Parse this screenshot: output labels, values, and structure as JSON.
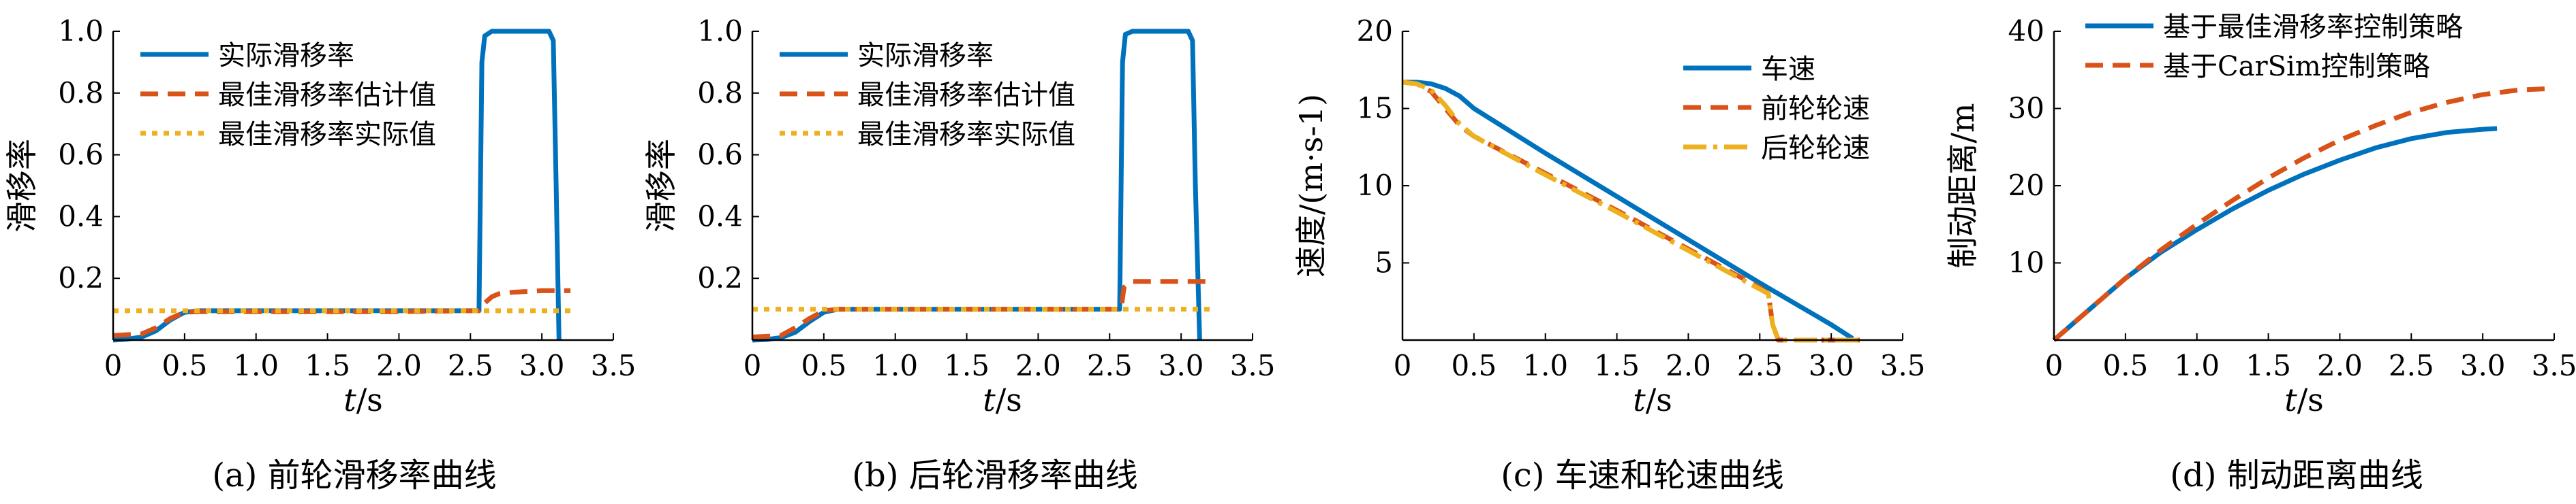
{
  "chart_data": [
    {
      "type": "line",
      "caption": "(a) 前轮滑移率曲线",
      "xlabel": "t/s",
      "ylabel": "滑移率",
      "xlim": [
        0,
        3.5
      ],
      "ylim": [
        0,
        1.0
      ],
      "xticks": [
        "0",
        "0.5",
        "1.0",
        "1.5",
        "2.0",
        "2.5",
        "3.0",
        "3.5"
      ],
      "yticks": [
        "0.2",
        "0.4",
        "0.6",
        "0.8",
        "1.0"
      ],
      "legend_position": "top-left",
      "series": [
        {
          "name": "实际滑移率",
          "color": "#0072BD",
          "style": "solid",
          "x": [
            0,
            0.1,
            0.2,
            0.3,
            0.4,
            0.5,
            0.6,
            0.8,
            1.0,
            1.5,
            2.0,
            2.5,
            2.56,
            2.58,
            2.6,
            2.65,
            3.0,
            3.05,
            3.08,
            3.1,
            3.12
          ],
          "y": [
            0,
            0.003,
            0.01,
            0.03,
            0.065,
            0.09,
            0.095,
            0.095,
            0.095,
            0.095,
            0.095,
            0.095,
            0.095,
            0.9,
            0.985,
            1.0,
            1.0,
            1.0,
            0.97,
            0.5,
            0.0
          ]
        },
        {
          "name": "最佳滑移率估计值",
          "color": "#D95319",
          "style": "dashed",
          "x": [
            0,
            0.2,
            0.3,
            0.4,
            0.5,
            0.6,
            0.8,
            1.0,
            1.5,
            2.0,
            2.5,
            2.56,
            2.6,
            2.65,
            2.7,
            2.8,
            3.0,
            3.2
          ],
          "y": [
            0.015,
            0.02,
            0.04,
            0.07,
            0.09,
            0.092,
            0.092,
            0.092,
            0.092,
            0.092,
            0.095,
            0.095,
            0.12,
            0.14,
            0.15,
            0.155,
            0.16,
            0.16
          ]
        },
        {
          "name": "最佳滑移率实际值",
          "color": "#EDB120",
          "style": "dotted",
          "x": [
            0,
            3.2
          ],
          "y": [
            0.095,
            0.095
          ]
        }
      ]
    },
    {
      "type": "line",
      "caption": "(b) 后轮滑移率曲线",
      "xlabel": "t/s",
      "ylabel": "滑移率",
      "xlim": [
        0,
        3.5
      ],
      "ylim": [
        0,
        1.0
      ],
      "xticks": [
        "0",
        "0.5",
        "1.0",
        "1.5",
        "2.0",
        "2.5",
        "3.0",
        "3.5"
      ],
      "yticks": [
        "0.2",
        "0.4",
        "0.6",
        "0.8",
        "1.0"
      ],
      "legend_position": "top-left",
      "series": [
        {
          "name": "实际滑移率",
          "color": "#0072BD",
          "style": "solid",
          "x": [
            0,
            0.1,
            0.2,
            0.3,
            0.4,
            0.5,
            0.6,
            0.8,
            1.0,
            1.5,
            2.0,
            2.5,
            2.57,
            2.59,
            2.61,
            2.66,
            3.0,
            3.05,
            3.08,
            3.1,
            3.13
          ],
          "y": [
            0,
            0.002,
            0.008,
            0.025,
            0.06,
            0.09,
            0.1,
            0.1,
            0.1,
            0.1,
            0.1,
            0.1,
            0.1,
            0.9,
            0.99,
            1.0,
            1.0,
            1.0,
            0.97,
            0.5,
            0.0
          ]
        },
        {
          "name": "最佳滑移率估计值",
          "color": "#D95319",
          "style": "dashed",
          "x": [
            0,
            0.2,
            0.3,
            0.4,
            0.5,
            0.6,
            0.8,
            1.0,
            1.5,
            2.0,
            2.5,
            2.58,
            2.6,
            2.65,
            3.0,
            3.2
          ],
          "y": [
            0.01,
            0.015,
            0.04,
            0.07,
            0.095,
            0.1,
            0.1,
            0.1,
            0.1,
            0.1,
            0.1,
            0.1,
            0.17,
            0.19,
            0.19,
            0.19
          ]
        },
        {
          "name": "最佳滑移率实际值",
          "color": "#EDB120",
          "style": "dotted",
          "x": [
            0,
            3.2
          ],
          "y": [
            0.1,
            0.1
          ]
        }
      ]
    },
    {
      "type": "line",
      "caption": "(c) 车速和轮速曲线",
      "xlabel": "t/s",
      "ylabel": "速度/(m·s-1)",
      "xlim": [
        0,
        3.5
      ],
      "ylim": [
        0,
        20
      ],
      "xticks": [
        "0",
        "0.5",
        "1.0",
        "1.5",
        "2.0",
        "2.5",
        "3.0",
        "3.5"
      ],
      "yticks": [
        "5",
        "10",
        "15",
        "20"
      ],
      "legend_position": "top-right",
      "series": [
        {
          "name": "车速",
          "color": "#0072BD",
          "style": "solid",
          "x": [
            0,
            0.1,
            0.2,
            0.3,
            0.4,
            0.5,
            1.0,
            1.5,
            2.0,
            2.5,
            3.0,
            3.15
          ],
          "y": [
            16.7,
            16.7,
            16.6,
            16.3,
            15.8,
            15.0,
            12.1,
            9.3,
            6.5,
            3.7,
            1.0,
            0.1
          ]
        },
        {
          "name": "前轮轮速",
          "color": "#D95319",
          "style": "dashed",
          "x": [
            0,
            0.1,
            0.2,
            0.3,
            0.4,
            0.5,
            1.0,
            1.5,
            2.0,
            2.5,
            2.56,
            2.59,
            2.63,
            3.2
          ],
          "y": [
            16.7,
            16.6,
            16.1,
            15.0,
            13.9,
            13.2,
            10.8,
            8.4,
            5.9,
            3.4,
            3.0,
            1.0,
            0.0,
            0.0
          ]
        },
        {
          "name": "后轮轮速",
          "color": "#EDB120",
          "style": "dashdot",
          "x": [
            0,
            0.1,
            0.2,
            0.3,
            0.4,
            0.5,
            1.0,
            1.5,
            2.0,
            2.5,
            2.56,
            2.59,
            2.63,
            3.2
          ],
          "y": [
            16.7,
            16.6,
            16.2,
            15.2,
            14.0,
            13.2,
            10.7,
            8.3,
            5.8,
            3.3,
            3.0,
            1.0,
            0.0,
            0.0
          ]
        }
      ]
    },
    {
      "type": "line",
      "caption": "(d) 制动距离曲线",
      "xlabel": "t/s",
      "ylabel": "制动距离/m",
      "xlim": [
        0,
        3.5
      ],
      "ylim": [
        0,
        40
      ],
      "xticks": [
        "0",
        "0.5",
        "1.0",
        "1.5",
        "2.0",
        "2.5",
        "3.0",
        "3.5"
      ],
      "yticks": [
        "10",
        "20",
        "30",
        "40"
      ],
      "legend_position": "top",
      "series": [
        {
          "name": "基于最佳滑移率控制策略",
          "color": "#0072BD",
          "style": "solid",
          "x": [
            0,
            0.25,
            0.5,
            0.75,
            1.0,
            1.25,
            1.5,
            1.75,
            2.0,
            2.25,
            2.5,
            2.75,
            3.0,
            3.1
          ],
          "y": [
            0,
            4.0,
            8.0,
            11.4,
            14.3,
            17.0,
            19.4,
            21.5,
            23.3,
            24.9,
            26.1,
            26.9,
            27.3,
            27.4
          ]
        },
        {
          "name": "基于CarSim控制策略",
          "color": "#D95319",
          "style": "dashed",
          "x": [
            0,
            0.25,
            0.5,
            0.75,
            1.0,
            1.25,
            1.5,
            1.75,
            2.0,
            2.25,
            2.5,
            2.75,
            3.0,
            3.25,
            3.5
          ],
          "y": [
            0,
            4.0,
            8.0,
            11.7,
            15.0,
            18.1,
            21.0,
            23.6,
            25.9,
            27.8,
            29.5,
            30.8,
            31.8,
            32.4,
            32.6
          ]
        }
      ]
    }
  ]
}
